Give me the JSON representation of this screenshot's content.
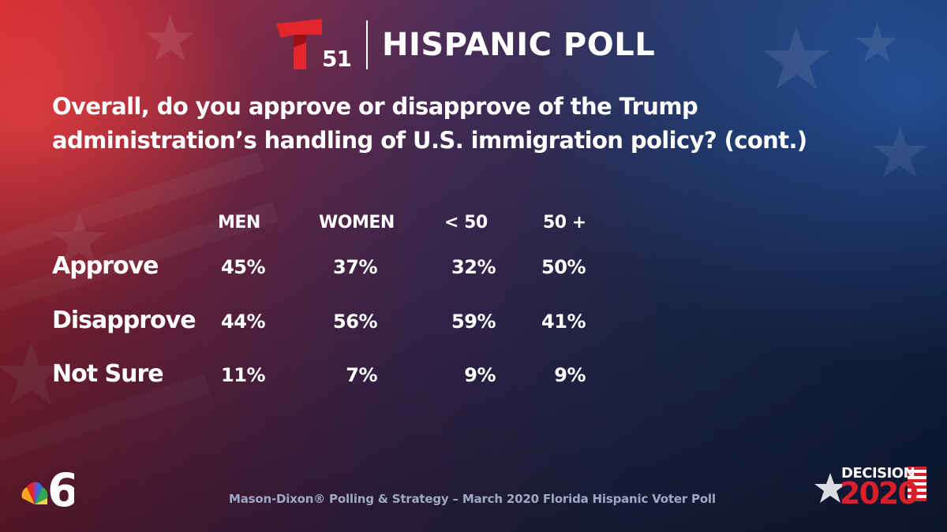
{
  "header": {
    "logo_number": "51",
    "brand": "HISPANIC POLL"
  },
  "question": "Overall, do you approve or disapprove of the Trump administration’s handling of U.S. immigration policy? (cont.)",
  "chart_data": {
    "type": "table",
    "title": "Overall, do you approve or disapprove of the Trump administration’s handling of U.S. immigration policy? (cont.)",
    "columns": [
      "MEN",
      "WOMEN",
      "< 50",
      "50 +"
    ],
    "rows": [
      {
        "label": "Approve",
        "values": [
          "45%",
          "37%",
          "32%",
          "50%"
        ]
      },
      {
        "label": "Disapprove",
        "values": [
          "44%",
          "56%",
          "59%",
          "41%"
        ]
      },
      {
        "label": "Not Sure",
        "values": [
          "11%",
          "7%",
          "9%",
          "9%"
        ]
      }
    ]
  },
  "footer": "Mason-Dixon® Polling & Strategy – March 2020 Florida Hispanic Voter Poll",
  "badges": {
    "station_number": "6",
    "decision_word": "DECISION",
    "decision_year": "2020"
  },
  "colors": {
    "telemundo_red": "#e3262c",
    "text": "#ffffff",
    "footer_text": "#9ea8c3"
  }
}
